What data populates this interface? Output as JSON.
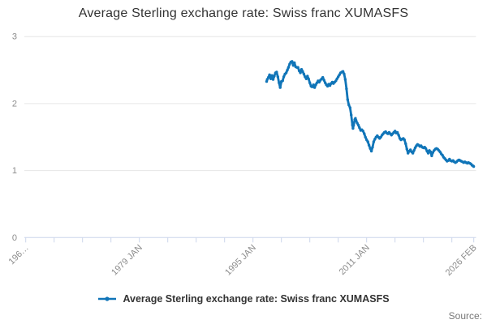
{
  "header": {
    "title": "Average Sterling exchange rate: Swiss franc XUMASFS"
  },
  "legend": {
    "label": "Average Sterling exchange rate: Swiss franc XUMASFS"
  },
  "footer": {
    "source_label": "Source:"
  },
  "colors": {
    "series_blue": "#1075b8",
    "grid": "#e6e6e6",
    "axis": "#ccd6eb",
    "tick_label": "#8c8c8c",
    "title_text": "#333333",
    "legend_text": "#333333",
    "source_text": "#777777"
  },
  "chart_data": {
    "type": "line",
    "title": "Average Sterling exchange rate: Swiss franc XUMASFS",
    "xlabel": "",
    "ylabel": "",
    "grid": "horizontal",
    "legend_position": "bottom",
    "y_axis": {
      "ticks": [
        0,
        1,
        2,
        3
      ],
      "range": [
        0,
        3
      ]
    },
    "x_axis": {
      "range": [
        1963.0,
        2026.17
      ],
      "tick_years": [
        1963,
        1967,
        1971,
        1975,
        1979,
        1983,
        1987,
        1991,
        1995,
        1999,
        2003,
        2007,
        2011,
        2015,
        2019,
        2023,
        2026.083
      ],
      "labels": [
        {
          "year": 1963,
          "text": "196…"
        },
        {
          "year": 1979,
          "text": "1979 JAN"
        },
        {
          "year": 1995,
          "text": "1995 JAN"
        },
        {
          "year": 2011,
          "text": "2011 JAN"
        },
        {
          "year": 2026.083,
          "text": "2026 FEB"
        }
      ]
    },
    "series": [
      {
        "name": "Average Sterling exchange rate: Swiss franc XUMASFS",
        "color": "#1075b8",
        "points": [
          [
            1996.92,
            2.33
          ],
          [
            1997.0,
            2.36
          ],
          [
            1997.17,
            2.39
          ],
          [
            1997.33,
            2.43
          ],
          [
            1997.5,
            2.37
          ],
          [
            1997.67,
            2.42
          ],
          [
            1997.83,
            2.36
          ],
          [
            1998.0,
            2.41
          ],
          [
            1998.17,
            2.46
          ],
          [
            1998.33,
            2.47
          ],
          [
            1998.5,
            2.4
          ],
          [
            1998.67,
            2.31
          ],
          [
            1998.83,
            2.24
          ],
          [
            1999.0,
            2.33
          ],
          [
            1999.17,
            2.34
          ],
          [
            1999.33,
            2.4
          ],
          [
            1999.5,
            2.44
          ],
          [
            1999.67,
            2.46
          ],
          [
            1999.83,
            2.5
          ],
          [
            2000.0,
            2.54
          ],
          [
            2000.17,
            2.59
          ],
          [
            2000.33,
            2.62
          ],
          [
            2000.5,
            2.63
          ],
          [
            2000.67,
            2.57
          ],
          [
            2000.83,
            2.61
          ],
          [
            2001.0,
            2.55
          ],
          [
            2001.17,
            2.54
          ],
          [
            2001.33,
            2.54
          ],
          [
            2001.5,
            2.49
          ],
          [
            2001.67,
            2.46
          ],
          [
            2001.83,
            2.51
          ],
          [
            2002.0,
            2.48
          ],
          [
            2002.17,
            2.44
          ],
          [
            2002.33,
            2.4
          ],
          [
            2002.5,
            2.37
          ],
          [
            2002.67,
            2.41
          ],
          [
            2002.83,
            2.37
          ],
          [
            2003.0,
            2.31
          ],
          [
            2003.17,
            2.26
          ],
          [
            2003.33,
            2.25
          ],
          [
            2003.5,
            2.28
          ],
          [
            2003.67,
            2.24
          ],
          [
            2003.83,
            2.28
          ],
          [
            2004.0,
            2.31
          ],
          [
            2004.17,
            2.34
          ],
          [
            2004.33,
            2.32
          ],
          [
            2004.5,
            2.35
          ],
          [
            2004.67,
            2.37
          ],
          [
            2004.83,
            2.39
          ],
          [
            2005.0,
            2.35
          ],
          [
            2005.17,
            2.31
          ],
          [
            2005.33,
            2.28
          ],
          [
            2005.5,
            2.26
          ],
          [
            2005.67,
            2.29
          ],
          [
            2005.83,
            2.27
          ],
          [
            2006.0,
            2.3
          ],
          [
            2006.17,
            2.32
          ],
          [
            2006.33,
            2.3
          ],
          [
            2006.5,
            2.32
          ],
          [
            2006.67,
            2.34
          ],
          [
            2006.83,
            2.37
          ],
          [
            2007.0,
            2.4
          ],
          [
            2007.17,
            2.43
          ],
          [
            2007.33,
            2.46
          ],
          [
            2007.5,
            2.47
          ],
          [
            2007.67,
            2.48
          ],
          [
            2007.83,
            2.44
          ],
          [
            2008.0,
            2.36
          ],
          [
            2008.17,
            2.22
          ],
          [
            2008.33,
            2.06
          ],
          [
            2008.5,
            1.98
          ],
          [
            2008.67,
            1.94
          ],
          [
            2008.83,
            1.83
          ],
          [
            2009.0,
            1.68
          ],
          [
            2009.08,
            1.63
          ],
          [
            2009.17,
            1.68
          ],
          [
            2009.33,
            1.76
          ],
          [
            2009.42,
            1.78
          ],
          [
            2009.5,
            1.75
          ],
          [
            2009.67,
            1.71
          ],
          [
            2009.83,
            1.68
          ],
          [
            2010.0,
            1.64
          ],
          [
            2010.17,
            1.6
          ],
          [
            2010.33,
            1.61
          ],
          [
            2010.5,
            1.59
          ],
          [
            2010.67,
            1.55
          ],
          [
            2010.83,
            1.5
          ],
          [
            2011.0,
            1.46
          ],
          [
            2011.17,
            1.43
          ],
          [
            2011.33,
            1.38
          ],
          [
            2011.5,
            1.33
          ],
          [
            2011.67,
            1.29
          ],
          [
            2011.83,
            1.35
          ],
          [
            2012.0,
            1.43
          ],
          [
            2012.17,
            1.47
          ],
          [
            2012.33,
            1.5
          ],
          [
            2012.5,
            1.52
          ],
          [
            2012.67,
            1.5
          ],
          [
            2012.83,
            1.48
          ],
          [
            2013.0,
            1.5
          ],
          [
            2013.17,
            1.53
          ],
          [
            2013.33,
            1.55
          ],
          [
            2013.5,
            1.57
          ],
          [
            2013.67,
            1.58
          ],
          [
            2013.83,
            1.56
          ],
          [
            2014.0,
            1.55
          ],
          [
            2014.17,
            1.57
          ],
          [
            2014.33,
            1.55
          ],
          [
            2014.5,
            1.53
          ],
          [
            2014.67,
            1.55
          ],
          [
            2014.83,
            1.57
          ],
          [
            2015.0,
            1.59
          ],
          [
            2015.17,
            1.56
          ],
          [
            2015.33,
            1.57
          ],
          [
            2015.5,
            1.53
          ],
          [
            2015.67,
            1.48
          ],
          [
            2015.83,
            1.46
          ],
          [
            2016.0,
            1.47
          ],
          [
            2016.17,
            1.48
          ],
          [
            2016.33,
            1.46
          ],
          [
            2016.5,
            1.4
          ],
          [
            2016.67,
            1.32
          ],
          [
            2016.83,
            1.26
          ],
          [
            2017.0,
            1.29
          ],
          [
            2017.17,
            1.31
          ],
          [
            2017.33,
            1.28
          ],
          [
            2017.5,
            1.26
          ],
          [
            2017.67,
            1.3
          ],
          [
            2017.83,
            1.34
          ],
          [
            2018.0,
            1.37
          ],
          [
            2018.17,
            1.39
          ],
          [
            2018.33,
            1.38
          ],
          [
            2018.5,
            1.36
          ],
          [
            2018.67,
            1.37
          ],
          [
            2018.83,
            1.35
          ],
          [
            2019.0,
            1.34
          ],
          [
            2019.17,
            1.35
          ],
          [
            2019.33,
            1.33
          ],
          [
            2019.5,
            1.29
          ],
          [
            2019.67,
            1.26
          ],
          [
            2019.83,
            1.3
          ],
          [
            2020.0,
            1.28
          ],
          [
            2020.17,
            1.22
          ],
          [
            2020.33,
            1.27
          ],
          [
            2020.5,
            1.3
          ],
          [
            2020.67,
            1.32
          ],
          [
            2020.83,
            1.33
          ],
          [
            2021.0,
            1.32
          ],
          [
            2021.17,
            1.3
          ],
          [
            2021.33,
            1.28
          ],
          [
            2021.5,
            1.25
          ],
          [
            2021.67,
            1.23
          ],
          [
            2021.83,
            1.2
          ],
          [
            2022.0,
            1.18
          ],
          [
            2022.17,
            1.16
          ],
          [
            2022.33,
            1.14
          ],
          [
            2022.5,
            1.15
          ],
          [
            2022.67,
            1.17
          ],
          [
            2022.83,
            1.15
          ],
          [
            2023.0,
            1.14
          ],
          [
            2023.17,
            1.15
          ],
          [
            2023.33,
            1.13
          ],
          [
            2023.5,
            1.12
          ],
          [
            2023.67,
            1.13
          ],
          [
            2023.83,
            1.15
          ],
          [
            2024.0,
            1.16
          ],
          [
            2024.17,
            1.15
          ],
          [
            2024.33,
            1.14
          ],
          [
            2024.5,
            1.13
          ],
          [
            2024.67,
            1.12
          ],
          [
            2024.83,
            1.13
          ],
          [
            2025.0,
            1.12
          ],
          [
            2025.17,
            1.11
          ],
          [
            2025.33,
            1.12
          ],
          [
            2025.5,
            1.11
          ],
          [
            2025.67,
            1.1
          ],
          [
            2025.83,
            1.08
          ],
          [
            2026.0,
            1.07
          ],
          [
            2026.08,
            1.06
          ]
        ]
      }
    ]
  }
}
